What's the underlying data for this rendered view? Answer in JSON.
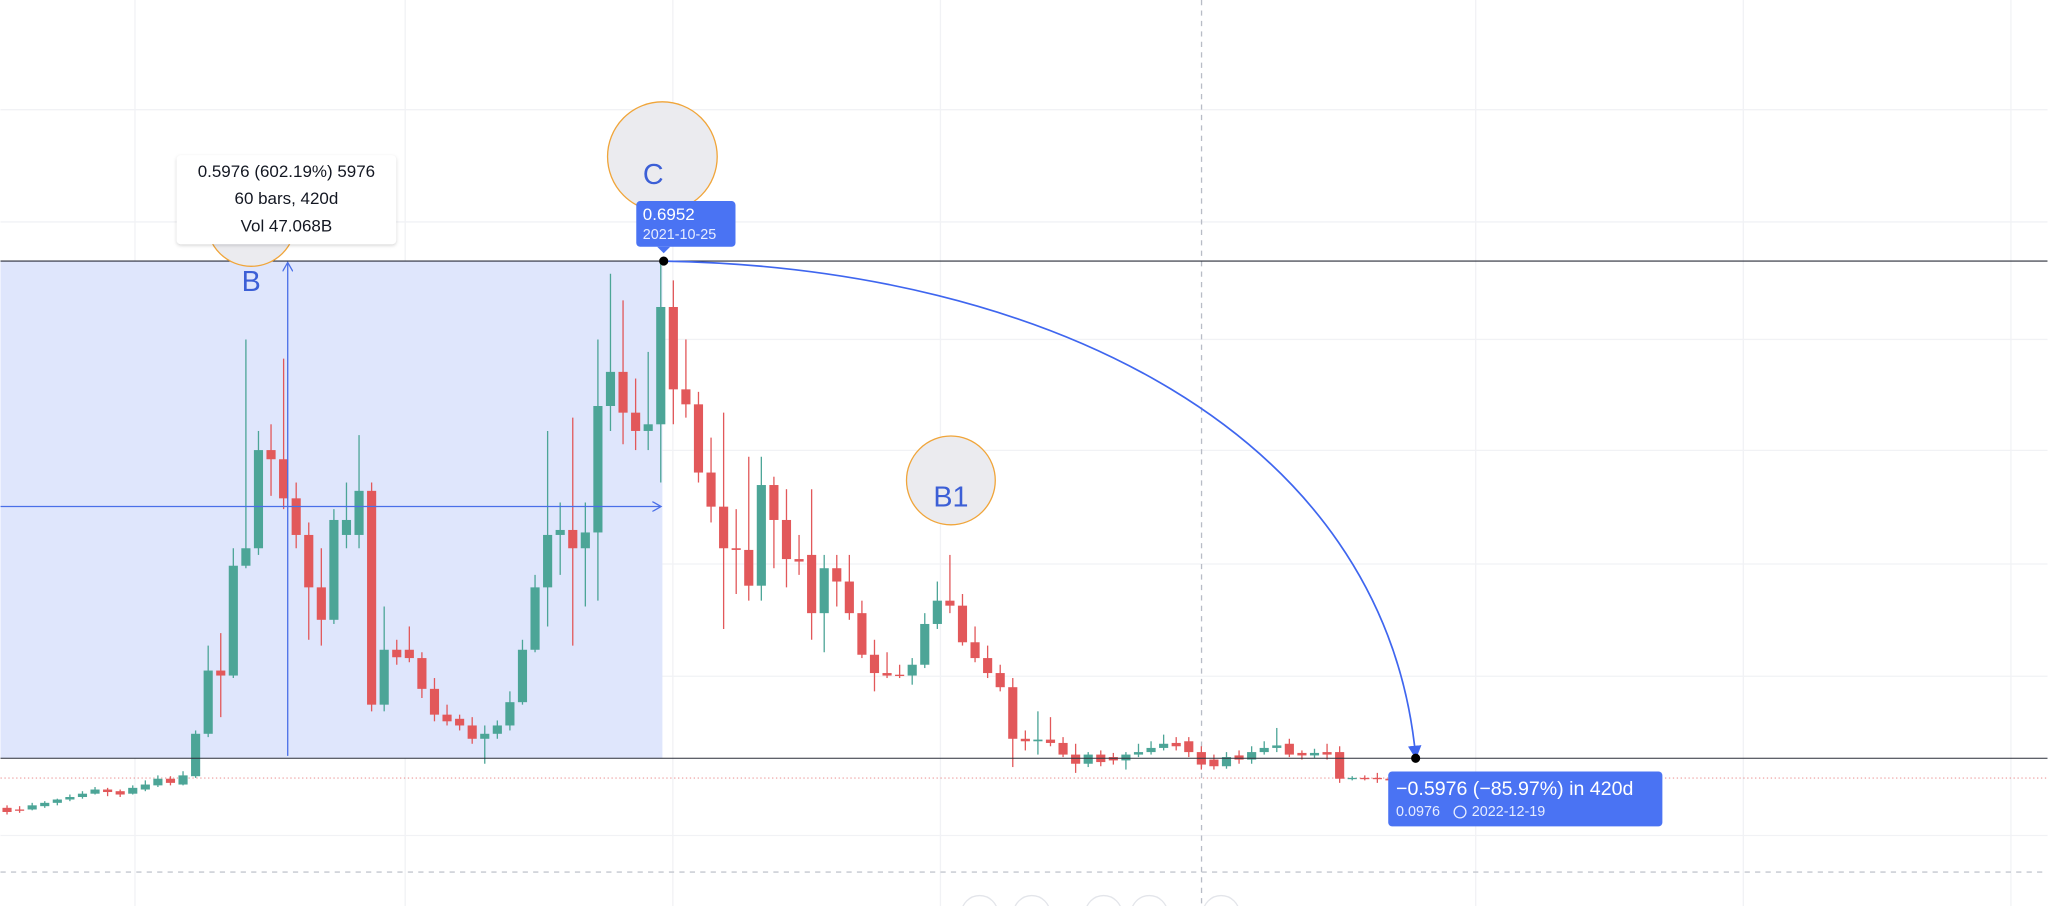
{
  "chart_data": {
    "type": "candlestick",
    "up_color": "#4ca597",
    "down_color": "#e2585a",
    "ylim": [
      -0.08,
      1.009
    ],
    "ohlc": [
      [
        0.038,
        0.041,
        0.03,
        0.033
      ],
      [
        0.036,
        0.04,
        0.032,
        0.035
      ],
      [
        0.036,
        0.044,
        0.035,
        0.041
      ],
      [
        0.04,
        0.046,
        0.038,
        0.044
      ],
      [
        0.044,
        0.049,
        0.041,
        0.048
      ],
      [
        0.048,
        0.054,
        0.046,
        0.051
      ],
      [
        0.051,
        0.058,
        0.049,
        0.055
      ],
      [
        0.055,
        0.063,
        0.054,
        0.06
      ],
      [
        0.06,
        0.062,
        0.052,
        0.057
      ],
      [
        0.058,
        0.06,
        0.051,
        0.054
      ],
      [
        0.055,
        0.065,
        0.054,
        0.062
      ],
      [
        0.06,
        0.071,
        0.058,
        0.066
      ],
      [
        0.065,
        0.077,
        0.063,
        0.073
      ],
      [
        0.073,
        0.076,
        0.065,
        0.068
      ],
      [
        0.066,
        0.082,
        0.065,
        0.077
      ],
      [
        0.076,
        0.131,
        0.074,
        0.127
      ],
      [
        0.127,
        0.233,
        0.123,
        0.203
      ],
      [
        0.203,
        0.248,
        0.147,
        0.197
      ],
      [
        0.197,
        0.35,
        0.194,
        0.329
      ],
      [
        0.329,
        0.601,
        0.326,
        0.35
      ],
      [
        0.35,
        0.491,
        0.342,
        0.468
      ],
      [
        0.468,
        0.499,
        0.413,
        0.457
      ],
      [
        0.457,
        0.578,
        0.397,
        0.41
      ],
      [
        0.41,
        0.429,
        0.35,
        0.366
      ],
      [
        0.366,
        0.381,
        0.24,
        0.303
      ],
      [
        0.303,
        0.35,
        0.233,
        0.264
      ],
      [
        0.264,
        0.397,
        0.259,
        0.384
      ],
      [
        0.366,
        0.429,
        0.35,
        0.384
      ],
      [
        0.366,
        0.486,
        0.35,
        0.419
      ],
      [
        0.419,
        0.429,
        0.154,
        0.162
      ],
      [
        0.162,
        0.28,
        0.154,
        0.228
      ],
      [
        0.228,
        0.24,
        0.21,
        0.219
      ],
      [
        0.228,
        0.256,
        0.213,
        0.218
      ],
      [
        0.218,
        0.225,
        0.17,
        0.181
      ],
      [
        0.181,
        0.194,
        0.142,
        0.15
      ],
      [
        0.15,
        0.162,
        0.137,
        0.142
      ],
      [
        0.145,
        0.15,
        0.131,
        0.137
      ],
      [
        0.137,
        0.147,
        0.115,
        0.121
      ],
      [
        0.121,
        0.137,
        0.091,
        0.127
      ],
      [
        0.127,
        0.143,
        0.121,
        0.137
      ],
      [
        0.137,
        0.178,
        0.131,
        0.165
      ],
      [
        0.165,
        0.24,
        0.162,
        0.228
      ],
      [
        0.228,
        0.318,
        0.225,
        0.303
      ],
      [
        0.303,
        0.491,
        0.256,
        0.366
      ],
      [
        0.366,
        0.405,
        0.318,
        0.372
      ],
      [
        0.372,
        0.507,
        0.233,
        0.35
      ],
      [
        0.35,
        0.405,
        0.28,
        0.369
      ],
      [
        0.369,
        0.601,
        0.287,
        0.521
      ],
      [
        0.521,
        0.68,
        0.491,
        0.562
      ],
      [
        0.562,
        0.648,
        0.475,
        0.513
      ],
      [
        0.513,
        0.554,
        0.468,
        0.491
      ],
      [
        0.491,
        0.586,
        0.468,
        0.499
      ],
      [
        0.499,
        0.695,
        0.429,
        0.64
      ],
      [
        0.64,
        0.672,
        0.499,
        0.541
      ],
      [
        0.541,
        0.601,
        0.507,
        0.523
      ],
      [
        0.523,
        0.538,
        0.429,
        0.441
      ],
      [
        0.441,
        0.483,
        0.381,
        0.4
      ],
      [
        0.4,
        0.513,
        0.253,
        0.35
      ],
      [
        0.35,
        0.397,
        0.295,
        0.348
      ],
      [
        0.348,
        0.46,
        0.287,
        0.305
      ],
      [
        0.305,
        0.46,
        0.287,
        0.426
      ],
      [
        0.426,
        0.436,
        0.326,
        0.384
      ],
      [
        0.384,
        0.421,
        0.303,
        0.337
      ],
      [
        0.337,
        0.366,
        0.318,
        0.334
      ],
      [
        0.342,
        0.421,
        0.24,
        0.272
      ],
      [
        0.272,
        0.342,
        0.225,
        0.326
      ],
      [
        0.326,
        0.342,
        0.28,
        0.31
      ],
      [
        0.31,
        0.342,
        0.264,
        0.272
      ],
      [
        0.272,
        0.287,
        0.218,
        0.222
      ],
      [
        0.222,
        0.24,
        0.178,
        0.2
      ],
      [
        0.2,
        0.225,
        0.194,
        0.197
      ],
      [
        0.198,
        0.21,
        0.194,
        0.197
      ],
      [
        0.197,
        0.218,
        0.186,
        0.21
      ],
      [
        0.21,
        0.272,
        0.206,
        0.259
      ],
      [
        0.259,
        0.31,
        0.253,
        0.287
      ],
      [
        0.287,
        0.342,
        0.272,
        0.281
      ],
      [
        0.281,
        0.295,
        0.233,
        0.237
      ],
      [
        0.237,
        0.256,
        0.213,
        0.218
      ],
      [
        0.218,
        0.233,
        0.194,
        0.2
      ],
      [
        0.2,
        0.21,
        0.178,
        0.183
      ],
      [
        0.183,
        0.194,
        0.087,
        0.121
      ],
      [
        0.121,
        0.131,
        0.107,
        0.118
      ],
      [
        0.118,
        0.154,
        0.102,
        0.12
      ],
      [
        0.12,
        0.147,
        0.112,
        0.116
      ],
      [
        0.116,
        0.123,
        0.099,
        0.102
      ],
      [
        0.102,
        0.115,
        0.08,
        0.091
      ],
      [
        0.091,
        0.105,
        0.087,
        0.102
      ],
      [
        0.102,
        0.107,
        0.088,
        0.093
      ],
      [
        0.099,
        0.104,
        0.09,
        0.095
      ],
      [
        0.095,
        0.105,
        0.084,
        0.102
      ],
      [
        0.102,
        0.115,
        0.099,
        0.105
      ],
      [
        0.105,
        0.118,
        0.102,
        0.11
      ],
      [
        0.11,
        0.126,
        0.107,
        0.115
      ],
      [
        0.116,
        0.123,
        0.107,
        0.112
      ],
      [
        0.118,
        0.123,
        0.099,
        0.105
      ],
      [
        0.105,
        0.112,
        0.084,
        0.09
      ],
      [
        0.096,
        0.102,
        0.084,
        0.088
      ],
      [
        0.088,
        0.105,
        0.085,
        0.099
      ],
      [
        0.101,
        0.107,
        0.091,
        0.096
      ],
      [
        0.096,
        0.112,
        0.091,
        0.105
      ],
      [
        0.105,
        0.118,
        0.102,
        0.11
      ],
      [
        0.11,
        0.134,
        0.105,
        0.113
      ],
      [
        0.115,
        0.121,
        0.099,
        0.102
      ],
      [
        0.104,
        0.107,
        0.096,
        0.101
      ],
      [
        0.101,
        0.109,
        0.098,
        0.104
      ],
      [
        0.105,
        0.115,
        0.096,
        0.102
      ],
      [
        0.105,
        0.112,
        0.068,
        0.073
      ],
      [
        0.073,
        0.076,
        0.071,
        0.074
      ],
      [
        0.074,
        0.077,
        0.071,
        0.073
      ],
      [
        0.074,
        0.08,
        0.068,
        0.073
      ],
      [
        0.073,
        0.076,
        0.069,
        0.071
      ]
    ],
    "annotations": {
      "measure": {
        "lines": [
          "0.5976 (602.19%) 5976",
          "60 bars, 420d",
          "Vol 47.068B"
        ]
      },
      "labels": [
        "B",
        "C",
        "B1"
      ],
      "peak": {
        "price": 0.6952,
        "date": "2021-10-25"
      },
      "drop": {
        "text": "−0.5976 (−85.97%) in 420d",
        "price": 0.0976,
        "date": "2022-12-19"
      }
    }
  }
}
